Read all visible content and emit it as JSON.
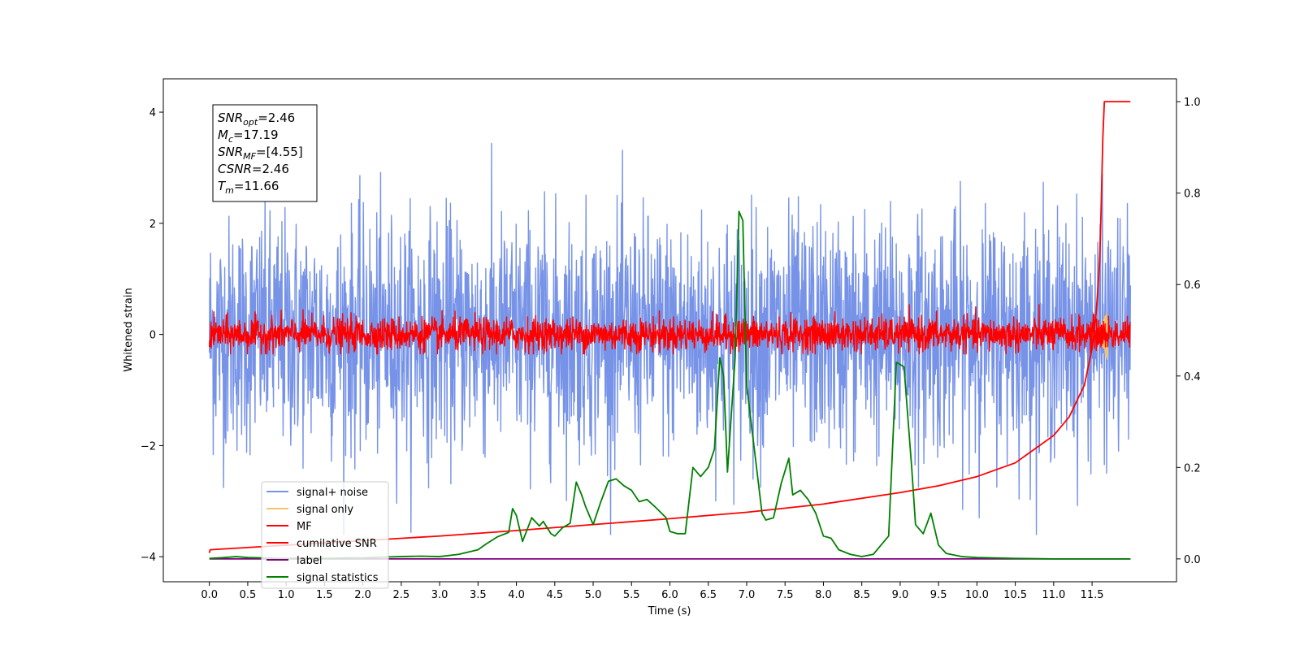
{
  "chart_data": {
    "type": "line",
    "xlabel": "Time (s)",
    "ylabel": "Whitened strain",
    "xlim": [
      -0.6,
      12.6
    ],
    "ylim": [
      -4.45,
      4.6
    ],
    "y2lim": [
      -0.05,
      1.05
    ],
    "grid": false,
    "legend_position": "lower-left",
    "x_ticks": [
      "0.0",
      "0.5",
      "1.0",
      "1.5",
      "2.0",
      "2.5",
      "3.0",
      "3.5",
      "4.0",
      "4.5",
      "5.0",
      "5.5",
      "6.0",
      "6.5",
      "7.0",
      "7.5",
      "8.0",
      "8.5",
      "9.0",
      "9.5",
      "10.0",
      "10.5",
      "11.0",
      "11.5"
    ],
    "y_ticks": [
      "−4",
      "−2",
      "0",
      "2",
      "4"
    ],
    "y2_ticks": [
      "0.0",
      "0.2",
      "0.4",
      "0.6",
      "0.8",
      "1.0"
    ],
    "annotation": [
      {
        "var": "SNR",
        "sub": "opt",
        "value": "=2.46"
      },
      {
        "var": "M",
        "sub": "c",
        "value": "=17.19"
      },
      {
        "var": "SNR",
        "sub": "MF",
        "value": "=[4.55]"
      },
      {
        "var": "CSNR",
        "sub": "",
        "value": "=2.46"
      },
      {
        "var": "T",
        "sub": "m",
        "value": "=11.66"
      }
    ],
    "series": [
      {
        "name": "signal+ noise",
        "color": "#7793e8",
        "axis": "left",
        "kind": "noise",
        "x_range": [
          0.0,
          12.0
        ],
        "std": 1.05,
        "max": 3.9,
        "min": -3.6
      },
      {
        "name": "signal only",
        "color": "#f5c26b",
        "axis": "left",
        "kind": "signal",
        "x_range": [
          11.5,
          11.7
        ],
        "peak": 0.5
      },
      {
        "name": "MF",
        "color": "#ff0000",
        "axis": "left",
        "kind": "noise",
        "x_range": [
          0.0,
          12.0
        ],
        "std": 0.15,
        "max": 1.0,
        "min": -0.35
      },
      {
        "name": "cumilative SNR",
        "color": "#ff0000",
        "axis": "right",
        "x": [
          0.0,
          0.01,
          1.0,
          2.0,
          3.0,
          4.0,
          5.0,
          6.0,
          7.0,
          8.0,
          9.0,
          9.5,
          10.0,
          10.5,
          11.0,
          11.2,
          11.4,
          11.5,
          11.55,
          11.6,
          11.62,
          11.64,
          11.66,
          12.0
        ],
        "y": [
          0.013,
          0.02,
          0.03,
          0.04,
          0.05,
          0.062,
          0.075,
          0.088,
          0.102,
          0.12,
          0.145,
          0.16,
          0.18,
          0.21,
          0.27,
          0.31,
          0.38,
          0.46,
          0.53,
          0.65,
          0.78,
          0.92,
          1.0,
          1.0
        ]
      },
      {
        "name": "label",
        "color": "#800080",
        "axis": "right",
        "x": [
          0.0,
          12.0
        ],
        "y": [
          0.0,
          0.0
        ]
      },
      {
        "name": "signal statistics",
        "color": "#008000",
        "axis": "right",
        "x": [
          0.0,
          0.2,
          0.35,
          0.5,
          0.75,
          1.0,
          1.25,
          1.5,
          1.75,
          2.0,
          2.25,
          2.5,
          2.75,
          3.0,
          3.25,
          3.5,
          3.6,
          3.75,
          3.9,
          3.95,
          4.0,
          4.08,
          4.2,
          4.3,
          4.35,
          4.45,
          4.5,
          4.6,
          4.7,
          4.78,
          4.85,
          4.9,
          5.0,
          5.1,
          5.2,
          5.3,
          5.4,
          5.5,
          5.6,
          5.7,
          5.8,
          5.95,
          6.0,
          6.1,
          6.2,
          6.3,
          6.4,
          6.5,
          6.58,
          6.65,
          6.7,
          6.75,
          6.85,
          6.9,
          6.95,
          7.0,
          7.1,
          7.2,
          7.25,
          7.35,
          7.45,
          7.55,
          7.6,
          7.7,
          7.8,
          7.9,
          8.0,
          8.1,
          8.2,
          8.35,
          8.5,
          8.65,
          8.75,
          8.85,
          8.95,
          9.05,
          9.15,
          9.2,
          9.3,
          9.4,
          9.5,
          9.6,
          9.8,
          10.0,
          10.5,
          11.0,
          11.5,
          12.0
        ],
        "y": [
          0.001,
          0.003,
          0.005,
          0.003,
          0.002,
          0.001,
          0.002,
          0.001,
          0.002,
          0.002,
          0.004,
          0.005,
          0.006,
          0.005,
          0.01,
          0.02,
          0.032,
          0.048,
          0.058,
          0.11,
          0.095,
          0.038,
          0.09,
          0.072,
          0.082,
          0.055,
          0.05,
          0.068,
          0.078,
          0.168,
          0.14,
          0.115,
          0.075,
          0.125,
          0.17,
          0.175,
          0.16,
          0.15,
          0.125,
          0.13,
          0.115,
          0.09,
          0.06,
          0.055,
          0.055,
          0.2,
          0.18,
          0.2,
          0.24,
          0.44,
          0.4,
          0.19,
          0.44,
          0.76,
          0.74,
          0.38,
          0.24,
          0.1,
          0.085,
          0.09,
          0.165,
          0.22,
          0.14,
          0.15,
          0.13,
          0.1,
          0.05,
          0.045,
          0.02,
          0.01,
          0.005,
          0.01,
          0.03,
          0.05,
          0.43,
          0.42,
          0.2,
          0.075,
          0.055,
          0.1,
          0.03,
          0.012,
          0.005,
          0.003,
          0.001,
          0.0,
          0.0,
          0.0
        ]
      }
    ]
  }
}
